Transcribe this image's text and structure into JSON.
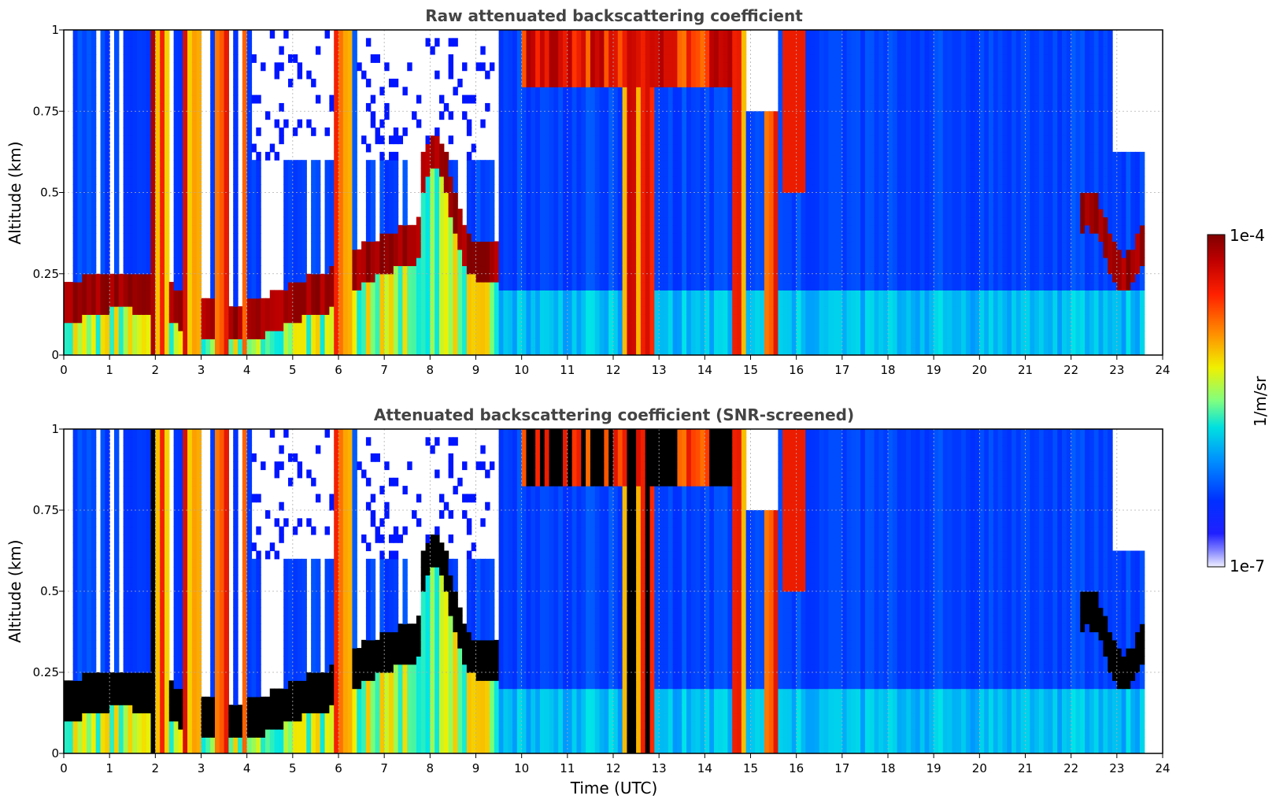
{
  "chart_data": [
    {
      "type": "heatmap",
      "title": "Raw attenuated backscattering coefficient",
      "xlabel": "",
      "ylabel": "Altitude (km)",
      "xlim": [
        0,
        24
      ],
      "ylim": [
        0,
        1
      ],
      "x_ticks": [
        "0",
        "1",
        "2",
        "3",
        "4",
        "5",
        "6",
        "7",
        "8",
        "9",
        "10",
        "11",
        "12",
        "13",
        "14",
        "15",
        "16",
        "17",
        "18",
        "19",
        "20",
        "21",
        "22",
        "23",
        "24"
      ],
      "y_ticks": [
        "0",
        "0.25",
        "0.5",
        "0.75",
        "1"
      ],
      "grid": true,
      "colormap": "jet (white → blue → cyan → yellow → red → dark red)",
      "color_scale": "log",
      "notes": "Time-height lidar curtain; boundary layer/aerosol layer ~0.1–0.3 km from 0–8 UTC rising to ~0.65 km near 8 UTC; dense vertical precipitation/cloud columns near 2–4, 6, 12–13, 14.7–15.6 UTC; elevated layer 0.2–0.6 km after 22 UTC"
    },
    {
      "type": "heatmap",
      "title": "Attenuated backscattering coefficient (SNR-screened)",
      "xlabel": "Time (UTC)",
      "ylabel": "Altitude (km)",
      "xlim": [
        0,
        24
      ],
      "ylim": [
        0,
        1
      ],
      "x_ticks": [
        "0",
        "1",
        "2",
        "3",
        "4",
        "5",
        "6",
        "7",
        "8",
        "9",
        "10",
        "11",
        "12",
        "13",
        "14",
        "15",
        "16",
        "17",
        "18",
        "19",
        "20",
        "21",
        "22",
        "23",
        "24"
      ],
      "y_ticks": [
        "0",
        "0.25",
        "0.5",
        "0.75",
        "1"
      ],
      "grid": true,
      "colormap": "jet with screened values shown in black",
      "color_scale": "log",
      "notes": "Same curtain after SNR screening; saturated/low-SNR bins masked in black"
    }
  ],
  "colorbar": {
    "max_label": "1e-4",
    "min_label": "1e-7",
    "unit_label": "1/m/sr",
    "colors": [
      "#800000",
      "#b00000",
      "#e00000",
      "#ff3000",
      "#ff7000",
      "#ffb000",
      "#f0f000",
      "#a0ff60",
      "#40ffc0",
      "#00d0ff",
      "#0090ff",
      "#0040ff",
      "#0010ff",
      "#4040ff",
      "#9090ff",
      "#e8e8ff"
    ]
  }
}
